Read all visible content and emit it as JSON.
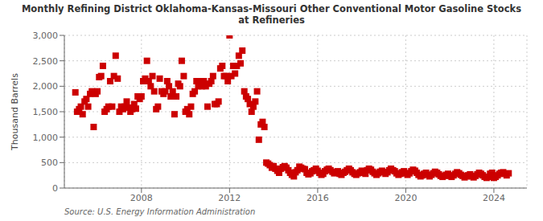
{
  "chart_data": {
    "type": "scatter",
    "title": "Monthly Refining District Oklahoma-Kansas-Missouri Other Conventional Motor Gasoline Stocks\nat Refineries",
    "y_label": "Thousand Barrels",
    "annotations": [
      "Source: U.S. Energy Information Administration"
    ],
    "color": "#cc0000",
    "marker": "square",
    "grid": true,
    "xlim": [
      2004.5,
      2025.5
    ],
    "xticks": [
      2008,
      2012,
      2016,
      2020,
      2024
    ],
    "ylim": [
      0,
      3000
    ],
    "yticks": [
      0,
      500,
      {
        "value": 1000,
        "label": "1,000"
      },
      {
        "value": 1500,
        "label": "1,500"
      },
      {
        "value": 2000,
        "label": "2,000"
      },
      {
        "value": 2500,
        "label": "2,500"
      },
      {
        "value": 3000,
        "label": "3,000"
      }
    ],
    "x": [
      2005.0,
      2005.08,
      2005.17,
      2005.25,
      2005.33,
      2005.42,
      2005.5,
      2005.58,
      2005.67,
      2005.75,
      2005.83,
      2005.92,
      2006.0,
      2006.08,
      2006.17,
      2006.25,
      2006.33,
      2006.42,
      2006.5,
      2006.58,
      2006.67,
      2006.75,
      2006.83,
      2006.92,
      2007.0,
      2007.08,
      2007.17,
      2007.25,
      2007.33,
      2007.42,
      2007.5,
      2007.58,
      2007.67,
      2007.75,
      2007.83,
      2007.92,
      2008.0,
      2008.08,
      2008.17,
      2008.25,
      2008.33,
      2008.42,
      2008.5,
      2008.58,
      2008.67,
      2008.75,
      2008.83,
      2008.92,
      2009.0,
      2009.08,
      2009.17,
      2009.25,
      2009.33,
      2009.42,
      2009.5,
      2009.58,
      2009.67,
      2009.75,
      2009.83,
      2009.92,
      2010.0,
      2010.08,
      2010.17,
      2010.25,
      2010.33,
      2010.42,
      2010.5,
      2010.58,
      2010.67,
      2010.75,
      2010.83,
      2010.92,
      2011.0,
      2011.08,
      2011.17,
      2011.25,
      2011.33,
      2011.42,
      2011.5,
      2011.58,
      2011.67,
      2011.75,
      2011.83,
      2011.92,
      2012.0,
      2012.08,
      2012.17,
      2012.25,
      2012.33,
      2012.42,
      2012.5,
      2012.58,
      2012.67,
      2012.75,
      2012.83,
      2012.92,
      2013.0,
      2013.08,
      2013.17,
      2013.25,
      2013.33,
      2013.42,
      2013.5,
      2013.58,
      2013.67,
      2013.75,
      2013.83,
      2013.92,
      2014.0,
      2014.08,
      2014.17,
      2014.25,
      2014.33,
      2014.42,
      2014.5,
      2014.58,
      2014.67,
      2014.75,
      2014.83,
      2014.92,
      2015.0,
      2015.08,
      2015.17,
      2015.25,
      2015.33,
      2015.42,
      2015.5,
      2015.58,
      2015.67,
      2015.75,
      2015.83,
      2015.92,
      2016.0,
      2016.08,
      2016.17,
      2016.25,
      2016.33,
      2016.42,
      2016.5,
      2016.58,
      2016.67,
      2016.75,
      2016.83,
      2016.92,
      2017.0,
      2017.08,
      2017.17,
      2017.25,
      2017.33,
      2017.42,
      2017.5,
      2017.58,
      2017.67,
      2017.75,
      2017.83,
      2017.92,
      2018.0,
      2018.08,
      2018.17,
      2018.25,
      2018.33,
      2018.42,
      2018.5,
      2018.58,
      2018.67,
      2018.75,
      2018.83,
      2018.92,
      2019.0,
      2019.08,
      2019.17,
      2019.25,
      2019.33,
      2019.42,
      2019.5,
      2019.58,
      2019.67,
      2019.75,
      2019.83,
      2019.92,
      2020.0,
      2020.08,
      2020.17,
      2020.25,
      2020.33,
      2020.42,
      2020.5,
      2020.58,
      2020.67,
      2020.75,
      2020.83,
      2020.92,
      2021.0,
      2021.08,
      2021.17,
      2021.25,
      2021.33,
      2021.42,
      2021.5,
      2021.58,
      2021.67,
      2021.75,
      2021.83,
      2021.92,
      2022.0,
      2022.08,
      2022.17,
      2022.25,
      2022.33,
      2022.42,
      2022.5,
      2022.58,
      2022.67,
      2022.75,
      2022.83,
      2022.92,
      2023.0,
      2023.08,
      2023.17,
      2023.25,
      2023.33,
      2023.42,
      2023.5,
      2023.58,
      2023.67,
      2023.75,
      2023.83,
      2023.92,
      2024.0,
      2024.08,
      2024.17,
      2024.25,
      2024.33,
      2024.42,
      2024.5,
      2024.58,
      2024.67
    ],
    "values": [
      1880,
      1500,
      1550,
      1600,
      1450,
      1700,
      1750,
      1600,
      1850,
      1900,
      1200,
      1850,
      1900,
      2180,
      2200,
      2400,
      1500,
      1550,
      1600,
      2100,
      1600,
      2200,
      2600,
      2150,
      1500,
      1600,
      1550,
      1600,
      1700,
      1580,
      1500,
      1550,
      1650,
      1560,
      1800,
      1750,
      1800,
      2100,
      2150,
      2500,
      2100,
      2000,
      2200,
      1900,
      1550,
      1600,
      2150,
      1900,
      1850,
      1900,
      2100,
      2000,
      1800,
      1900,
      1450,
      1800,
      2050,
      2000,
      2500,
      2200,
      1500,
      1550,
      1450,
      1600,
      1850,
      1900,
      2100,
      2000,
      2100,
      2000,
      2100,
      2000,
      1600,
      2050,
      2100,
      2200,
      1650,
      1650,
      1700,
      2350,
      2400,
      2200,
      2200,
      2100,
      3000,
      2200,
      2400,
      2250,
      2400,
      2600,
      2450,
      2700,
      1900,
      1800,
      1750,
      1650,
      1500,
      1600,
      1700,
      1900,
      950,
      1250,
      1300,
      1200,
      500,
      480,
      450,
      400,
      430,
      380,
      340,
      300,
      380,
      410,
      430,
      400,
      350,
      300,
      260,
      230,
      310,
      350,
      420,
      400,
      380,
      370,
      300,
      270,
      290,
      330,
      350,
      380,
      340,
      300,
      260,
      280,
      330,
      360,
      380,
      350,
      320,
      290,
      310,
      330,
      280,
      260,
      300,
      320,
      350,
      380,
      350,
      310,
      280,
      260,
      290,
      310,
      340,
      300,
      280,
      350,
      380,
      360,
      320,
      290,
      260,
      290,
      320,
      340,
      310,
      280,
      310,
      350,
      380,
      350,
      330,
      290,
      260,
      280,
      310,
      330,
      290,
      260,
      290,
      330,
      360,
      340,
      300,
      260,
      230,
      250,
      280,
      300,
      260,
      230,
      260,
      290,
      320,
      300,
      270,
      240,
      220,
      240,
      260,
      280,
      240,
      220,
      250,
      280,
      310,
      290,
      260,
      240,
      210,
      230,
      250,
      270,
      230,
      210,
      240,
      270,
      300,
      280,
      250,
      220,
      200,
      220,
      280,
      300,
      200,
      220,
      250,
      280,
      300,
      310,
      280,
      250,
      290
    ]
  }
}
